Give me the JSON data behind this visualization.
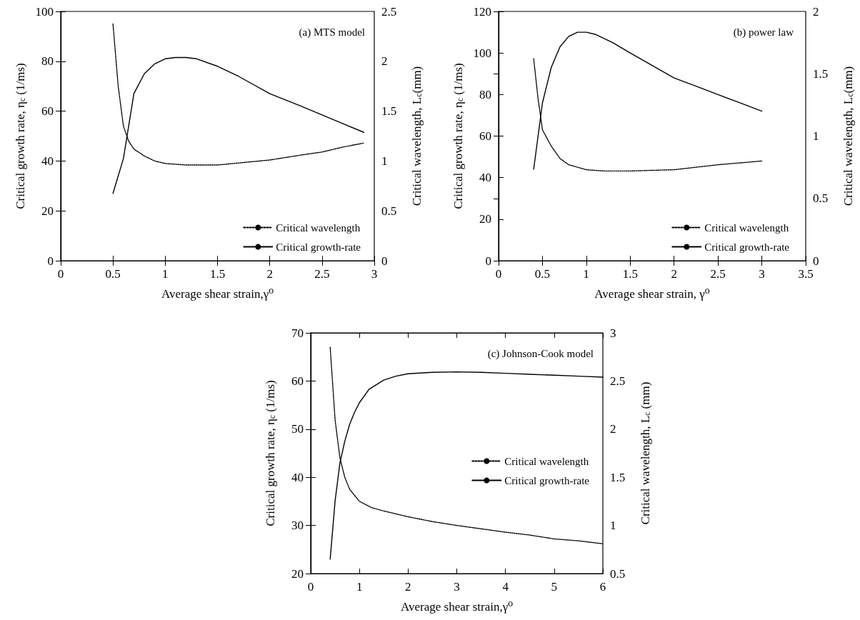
{
  "chart_data": [
    {
      "type": "line",
      "title": "(a) MTS model",
      "xlabel": "Average shear strain,γ⁰",
      "ylabel": "Critical growth rate, η$_{c}$ (1/ms)",
      "y2label": "Critical wavelength, L$_{c}$(mm)",
      "xlim": [
        0,
        3
      ],
      "xticks": [
        0,
        0.5,
        1,
        1.5,
        2,
        2.5,
        3
      ],
      "ylim": [
        0,
        100
      ],
      "yticks": [
        0,
        20,
        40,
        60,
        80,
        100
      ],
      "y2lim": [
        0,
        2.5
      ],
      "y2ticks": [
        0,
        0.5,
        1,
        1.5,
        2,
        2.5
      ],
      "legend": "bottom right",
      "grid": false,
      "marker": "none",
      "series": [
        {
          "name": "Critical wavelength",
          "color": "#000000",
          "axis": "y2",
          "line_style": "dotted",
          "x": [
            0.5,
            0.55,
            0.6,
            0.65,
            0.7,
            0.8,
            0.9,
            1.0,
            1.2,
            1.5,
            1.8,
            2.0,
            2.3,
            2.5,
            2.7,
            2.9
          ],
          "values": [
            2.375,
            1.75,
            1.35,
            1.2,
            1.12,
            1.05,
            1.0,
            0.975,
            0.96,
            0.96,
            0.99,
            1.01,
            1.06,
            1.09,
            1.14,
            1.18
          ]
        },
        {
          "name": "Critical growth-rate",
          "color": "#000000",
          "line_style": "solid",
          "x": [
            0.5,
            0.6,
            0.7,
            0.8,
            0.9,
            1.0,
            1.1,
            1.2,
            1.3,
            1.5,
            1.7,
            2.0,
            2.3,
            2.5,
            2.7,
            2.9
          ],
          "values": [
            27,
            41,
            67,
            75,
            79,
            81,
            81.5,
            81.5,
            81,
            78,
            74,
            67,
            62,
            58.5,
            55,
            51.5
          ]
        }
      ]
    },
    {
      "type": "line",
      "title": "(b) power law",
      "xlabel": "Average shear strain, γ⁰",
      "ylabel": "Critical growth rate, η$_{c}$ (1/ms)",
      "y2label": "Critical wavelength, L$_{c}$(mm)",
      "xlim": [
        0,
        3.5
      ],
      "xticks": [
        0,
        0.5,
        1,
        1.5,
        2,
        2.5,
        3,
        3.5
      ],
      "ylim": [
        0,
        120
      ],
      "yticks": [
        0,
        20,
        40,
        60,
        80,
        100,
        120
      ],
      "y2lim": [
        0,
        2
      ],
      "y2ticks": [
        0,
        0.5,
        1,
        1.5,
        2
      ],
      "legend": "bottom right",
      "grid": false,
      "marker": "none",
      "series": [
        {
          "name": "Critical wavelength",
          "color": "#000000",
          "axis": "y2",
          "line_style": "dotted",
          "x": [
            0.4,
            0.45,
            0.5,
            0.6,
            0.7,
            0.8,
            1.0,
            1.2,
            1.5,
            2.0,
            2.5,
            3.0
          ],
          "values": [
            1.62,
            1.3,
            1.05,
            0.92,
            0.82,
            0.77,
            0.73,
            0.72,
            0.72,
            0.73,
            0.77,
            0.8
          ]
        },
        {
          "name": "Critical growth-rate",
          "color": "#000000",
          "line_style": "solid",
          "x": [
            0.4,
            0.5,
            0.6,
            0.7,
            0.8,
            0.9,
            1.0,
            1.1,
            1.3,
            1.5,
            1.75,
            2.0,
            2.25,
            2.5,
            2.75,
            3.0
          ],
          "values": [
            44,
            76,
            93,
            103,
            108,
            110,
            110,
            109,
            105,
            100,
            94,
            88,
            84,
            80,
            76,
            72
          ]
        }
      ]
    },
    {
      "type": "line",
      "title": "(c) Johnson-Cook model",
      "xlabel": "Average shear strain,γ⁰",
      "ylabel": "Critical growth rate, η$_{c}$ (1/ms)",
      "y2label": "Critical wavelength, L$_{c}$ (mm)",
      "xlim": [
        0,
        6
      ],
      "xticks": [
        0,
        1,
        2,
        3,
        4,
        5,
        6
      ],
      "ylim": [
        20,
        70
      ],
      "yticks": [
        20,
        30,
        40,
        50,
        60,
        70
      ],
      "y2lim": [
        0.5,
        3
      ],
      "y2ticks": [
        0.5,
        1,
        1.5,
        2,
        2.5,
        3
      ],
      "legend": "right",
      "grid": false,
      "marker": "none",
      "series": [
        {
          "name": "Critical wavelength",
          "color": "#000000",
          "axis": "y2",
          "line_style": "dotted",
          "x": [
            0.4,
            0.5,
            0.6,
            0.7,
            0.8,
            1.0,
            1.25,
            1.5,
            2.0,
            2.5,
            3.0,
            3.5,
            4.0,
            4.5,
            5.0,
            5.5,
            6.0
          ],
          "values": [
            2.85,
            2.1,
            1.7,
            1.5,
            1.375,
            1.25,
            1.185,
            1.15,
            1.09,
            1.04,
            1.0,
            0.965,
            0.93,
            0.9,
            0.86,
            0.84,
            0.81
          ]
        },
        {
          "name": "Critical growth-rate",
          "color": "#000000",
          "line_style": "solid",
          "x": [
            0.4,
            0.45,
            0.5,
            0.6,
            0.7,
            0.8,
            0.9,
            1.0,
            1.2,
            1.5,
            1.75,
            2.0,
            2.5,
            3.0,
            3.5,
            4.0,
            4.5,
            5.0,
            5.5,
            6.0
          ],
          "values": [
            23,
            29,
            35,
            43,
            47.5,
            51,
            53.5,
            55.5,
            58.3,
            60.2,
            61,
            61.5,
            61.8,
            61.9,
            61.8,
            61.6,
            61.4,
            61.2,
            61,
            60.8
          ]
        }
      ]
    }
  ]
}
